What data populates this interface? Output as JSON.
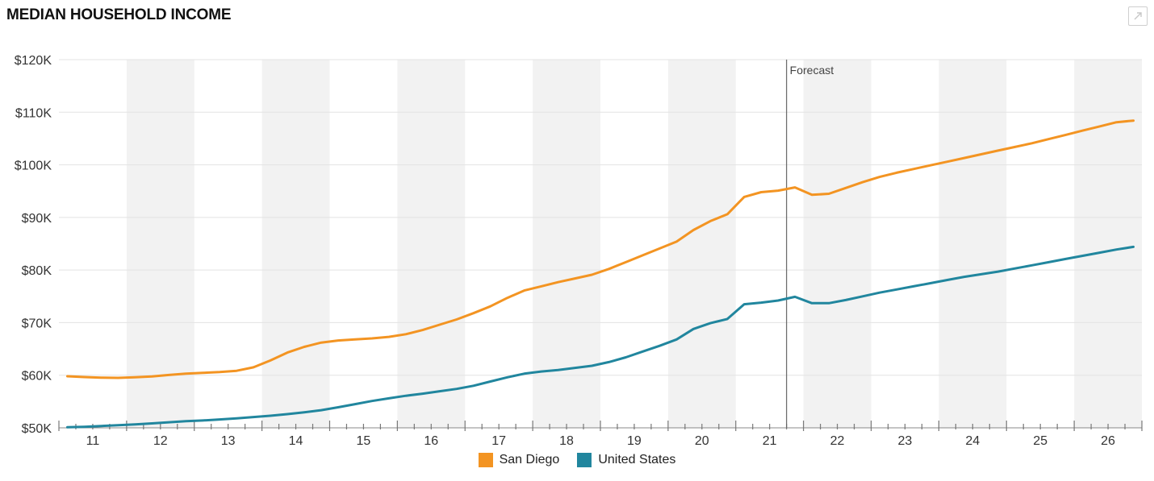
{
  "header": {
    "title": "MEDIAN HOUSEHOLD INCOME",
    "expand_icon": "expand-icon"
  },
  "colors": {
    "san_diego": "#f39422",
    "united_states": "#21869e",
    "band": "#f2f2f2",
    "grid": "#e3e3e3",
    "forecast_line": "#666666"
  },
  "chart_data": {
    "type": "line",
    "title": "MEDIAN HOUSEHOLD INCOME",
    "xlabel": "",
    "ylabel": "",
    "x_ticks": [
      "11",
      "12",
      "13",
      "14",
      "15",
      "16",
      "17",
      "18",
      "19",
      "20",
      "21",
      "22",
      "23",
      "24",
      "25",
      "26"
    ],
    "y_ticks": [
      "$50K",
      "$60K",
      "$70K",
      "$80K",
      "$90K",
      "$100K",
      "$110K",
      "$120K"
    ],
    "ylim": [
      50000,
      120000
    ],
    "xlim": [
      2010.5,
      2026.5
    ],
    "grid": true,
    "alternating_year_bands": true,
    "forecast": {
      "label": "Forecast",
      "x": 2021.25
    },
    "legend_position": "bottom-center",
    "series": [
      {
        "name": "San Diego",
        "color": "#f39422",
        "points": [
          [
            2010.625,
            59800
          ],
          [
            2010.875,
            59650
          ],
          [
            2011.125,
            59550
          ],
          [
            2011.375,
            59500
          ],
          [
            2011.625,
            59600
          ],
          [
            2011.875,
            59750
          ],
          [
            2012.125,
            60050
          ],
          [
            2012.375,
            60300
          ],
          [
            2012.625,
            60450
          ],
          [
            2012.875,
            60600
          ],
          [
            2013.125,
            60850
          ],
          [
            2013.375,
            61500
          ],
          [
            2013.625,
            62800
          ],
          [
            2013.875,
            64300
          ],
          [
            2014.125,
            65400
          ],
          [
            2014.375,
            66200
          ],
          [
            2014.625,
            66600
          ],
          [
            2014.875,
            66800
          ],
          [
            2015.125,
            67000
          ],
          [
            2015.375,
            67300
          ],
          [
            2015.625,
            67800
          ],
          [
            2015.875,
            68600
          ],
          [
            2016.125,
            69600
          ],
          [
            2016.375,
            70600
          ],
          [
            2016.625,
            71800
          ],
          [
            2016.875,
            73100
          ],
          [
            2017.125,
            74700
          ],
          [
            2017.375,
            76100
          ],
          [
            2017.625,
            76900
          ],
          [
            2017.875,
            77700
          ],
          [
            2018.125,
            78400
          ],
          [
            2018.375,
            79100
          ],
          [
            2018.625,
            80200
          ],
          [
            2018.875,
            81500
          ],
          [
            2019.125,
            82800
          ],
          [
            2019.375,
            84100
          ],
          [
            2019.625,
            85400
          ],
          [
            2019.875,
            87600
          ],
          [
            2020.125,
            89300
          ],
          [
            2020.375,
            90600
          ],
          [
            2020.625,
            93900
          ],
          [
            2020.875,
            94800
          ],
          [
            2021.125,
            95100
          ],
          [
            2021.375,
            95700
          ],
          [
            2021.625,
            94300
          ],
          [
            2021.875,
            94500
          ],
          [
            2022.125,
            95600
          ],
          [
            2022.375,
            96700
          ],
          [
            2022.625,
            97700
          ],
          [
            2022.875,
            98500
          ],
          [
            2023.125,
            99200
          ],
          [
            2023.375,
            99900
          ],
          [
            2023.625,
            100600
          ],
          [
            2023.875,
            101300
          ],
          [
            2024.125,
            102000
          ],
          [
            2024.375,
            102700
          ],
          [
            2024.625,
            103400
          ],
          [
            2024.875,
            104100
          ],
          [
            2025.125,
            104900
          ],
          [
            2025.375,
            105700
          ],
          [
            2025.625,
            106500
          ],
          [
            2025.875,
            107300
          ],
          [
            2026.125,
            108100
          ],
          [
            2026.375,
            108400
          ]
        ]
      },
      {
        "name": "United States",
        "color": "#21869e",
        "points": [
          [
            2010.625,
            50100
          ],
          [
            2010.875,
            50200
          ],
          [
            2011.125,
            50350
          ],
          [
            2011.375,
            50500
          ],
          [
            2011.625,
            50650
          ],
          [
            2011.875,
            50850
          ],
          [
            2012.125,
            51050
          ],
          [
            2012.375,
            51250
          ],
          [
            2012.625,
            51400
          ],
          [
            2012.875,
            51600
          ],
          [
            2013.125,
            51800
          ],
          [
            2013.375,
            52050
          ],
          [
            2013.625,
            52300
          ],
          [
            2013.875,
            52600
          ],
          [
            2014.125,
            52950
          ],
          [
            2014.375,
            53350
          ],
          [
            2014.625,
            53900
          ],
          [
            2014.875,
            54500
          ],
          [
            2015.125,
            55100
          ],
          [
            2015.375,
            55600
          ],
          [
            2015.625,
            56100
          ],
          [
            2015.875,
            56500
          ],
          [
            2016.125,
            56950
          ],
          [
            2016.375,
            57400
          ],
          [
            2016.625,
            58000
          ],
          [
            2016.875,
            58800
          ],
          [
            2017.125,
            59600
          ],
          [
            2017.375,
            60300
          ],
          [
            2017.625,
            60700
          ],
          [
            2017.875,
            61000
          ],
          [
            2018.125,
            61400
          ],
          [
            2018.375,
            61800
          ],
          [
            2018.625,
            62500
          ],
          [
            2018.875,
            63400
          ],
          [
            2019.125,
            64500
          ],
          [
            2019.375,
            65600
          ],
          [
            2019.625,
            66800
          ],
          [
            2019.875,
            68800
          ],
          [
            2020.125,
            69900
          ],
          [
            2020.375,
            70700
          ],
          [
            2020.625,
            73500
          ],
          [
            2020.875,
            73800
          ],
          [
            2021.125,
            74200
          ],
          [
            2021.375,
            74900
          ],
          [
            2021.625,
            73700
          ],
          [
            2021.875,
            73700
          ],
          [
            2022.125,
            74300
          ],
          [
            2022.375,
            75000
          ],
          [
            2022.625,
            75700
          ],
          [
            2022.875,
            76300
          ],
          [
            2023.125,
            76900
          ],
          [
            2023.375,
            77500
          ],
          [
            2023.625,
            78100
          ],
          [
            2023.875,
            78700
          ],
          [
            2024.125,
            79200
          ],
          [
            2024.375,
            79700
          ],
          [
            2024.625,
            80300
          ],
          [
            2024.875,
            80900
          ],
          [
            2025.125,
            81500
          ],
          [
            2025.375,
            82100
          ],
          [
            2025.625,
            82700
          ],
          [
            2025.875,
            83300
          ],
          [
            2026.125,
            83900
          ],
          [
            2026.375,
            84400
          ]
        ]
      }
    ]
  }
}
